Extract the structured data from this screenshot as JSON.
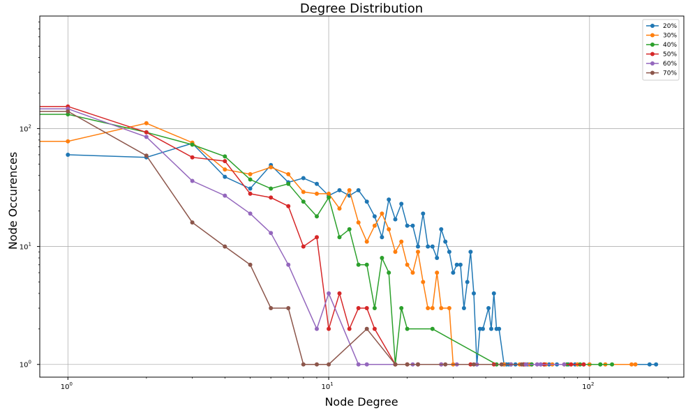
{
  "chart_data": {
    "type": "line",
    "title": "Degree Distribution",
    "xlabel": "Node Degree",
    "ylabel": "Node Occurences",
    "xscale": "log",
    "yscale": "log",
    "xlim": [
      0.78,
      230
    ],
    "ylim": [
      0.78,
      900
    ],
    "grid": true,
    "legend_position": "top-right",
    "x_ticks": [
      {
        "base": "10",
        "exp": "0",
        "value": 1
      },
      {
        "base": "10",
        "exp": "1",
        "value": 10
      },
      {
        "base": "10",
        "exp": "2",
        "value": 100
      }
    ],
    "y_ticks": [
      {
        "base": "10",
        "exp": "0",
        "value": 1
      },
      {
        "base": "10",
        "exp": "1",
        "value": 10
      },
      {
        "base": "10",
        "exp": "2",
        "value": 100
      }
    ],
    "series": [
      {
        "name": "20%",
        "color": "#1f77b4",
        "points": [
          [
            1,
            60
          ],
          [
            2,
            57
          ],
          [
            3,
            75
          ],
          [
            4,
            39
          ],
          [
            5,
            31
          ],
          [
            6,
            49
          ],
          [
            7,
            35
          ],
          [
            8,
            38
          ],
          [
            9,
            34
          ],
          [
            10,
            27
          ],
          [
            11,
            30
          ],
          [
            12,
            27
          ],
          [
            13,
            30
          ],
          [
            14,
            24
          ],
          [
            15,
            18
          ],
          [
            16,
            12
          ],
          [
            17,
            25
          ],
          [
            18,
            17
          ],
          [
            19,
            23
          ],
          [
            20,
            15
          ],
          [
            21,
            15
          ],
          [
            22,
            10
          ],
          [
            23,
            19
          ],
          [
            24,
            10
          ],
          [
            25,
            10
          ],
          [
            26,
            8
          ],
          [
            27,
            14
          ],
          [
            28,
            11
          ],
          [
            29,
            9
          ],
          [
            30,
            6
          ],
          [
            31,
            7
          ],
          [
            32,
            7
          ],
          [
            33,
            3
          ],
          [
            34,
            5
          ],
          [
            35,
            9
          ],
          [
            36,
            4
          ],
          [
            37,
            1
          ],
          [
            38,
            2
          ],
          [
            39,
            2
          ],
          [
            41,
            3
          ],
          [
            42,
            2
          ],
          [
            43,
            4
          ],
          [
            44,
            2
          ],
          [
            45,
            2
          ],
          [
            47,
            1
          ],
          [
            48,
            1
          ],
          [
            49,
            1
          ],
          [
            52,
            1
          ],
          [
            56,
            1
          ],
          [
            58,
            1
          ],
          [
            60,
            1
          ],
          [
            65,
            1
          ],
          [
            70,
            1
          ],
          [
            75,
            1
          ],
          [
            83,
            1
          ],
          [
            88,
            1
          ],
          [
            95,
            1
          ],
          [
            100,
            1
          ],
          [
            110,
            1
          ],
          [
            170,
            1
          ],
          [
            180,
            1
          ]
        ]
      },
      {
        "name": "30%",
        "color": "#ff7f0e",
        "points": [
          [
            0.78,
            78
          ],
          [
            1,
            78
          ],
          [
            2,
            111
          ],
          [
            3,
            76
          ],
          [
            4,
            45
          ],
          [
            5,
            41
          ],
          [
            6,
            47
          ],
          [
            7,
            41
          ],
          [
            8,
            29
          ],
          [
            9,
            28
          ],
          [
            10,
            28
          ],
          [
            11,
            21
          ],
          [
            12,
            30
          ],
          [
            13,
            16
          ],
          [
            14,
            11
          ],
          [
            15,
            15
          ],
          [
            16,
            19
          ],
          [
            17,
            14
          ],
          [
            18,
            9
          ],
          [
            19,
            11
          ],
          [
            20,
            7
          ],
          [
            21,
            6
          ],
          [
            22,
            9
          ],
          [
            23,
            5
          ],
          [
            24,
            3
          ],
          [
            25,
            3
          ],
          [
            26,
            6
          ],
          [
            27,
            3
          ],
          [
            29,
            3
          ],
          [
            30,
            1
          ],
          [
            47,
            1
          ],
          [
            50,
            1
          ],
          [
            54,
            1
          ],
          [
            57,
            1
          ],
          [
            59,
            1
          ],
          [
            63,
            1
          ],
          [
            68,
            1
          ],
          [
            72,
            1
          ],
          [
            80,
            1
          ],
          [
            85,
            1
          ],
          [
            90,
            1
          ],
          [
            100,
            1
          ],
          [
            115,
            1
          ],
          [
            145,
            1
          ],
          [
            150,
            1
          ]
        ]
      },
      {
        "name": "40%",
        "color": "#2ca02c",
        "points": [
          [
            0.78,
            132
          ],
          [
            1,
            132
          ],
          [
            2,
            93
          ],
          [
            3,
            73
          ],
          [
            4,
            58
          ],
          [
            5,
            37
          ],
          [
            6,
            31
          ],
          [
            7,
            34
          ],
          [
            8,
            24
          ],
          [
            9,
            18
          ],
          [
            10,
            26
          ],
          [
            11,
            12
          ],
          [
            12,
            14
          ],
          [
            13,
            7
          ],
          [
            14,
            7
          ],
          [
            15,
            3
          ],
          [
            16,
            8
          ],
          [
            17,
            6
          ],
          [
            18,
            1
          ],
          [
            19,
            3
          ],
          [
            20,
            2
          ],
          [
            25,
            2
          ],
          [
            44,
            1
          ],
          [
            50,
            1
          ],
          [
            56,
            1
          ],
          [
            60,
            1
          ],
          [
            67,
            1
          ],
          [
            82,
            1
          ],
          [
            92,
            1
          ],
          [
            110,
            1
          ],
          [
            122,
            1
          ]
        ]
      },
      {
        "name": "50%",
        "color": "#d62728",
        "points": [
          [
            0.78,
            154
          ],
          [
            1,
            154
          ],
          [
            2,
            93
          ],
          [
            3,
            57
          ],
          [
            4,
            53
          ],
          [
            5,
            28
          ],
          [
            6,
            26
          ],
          [
            7,
            22
          ],
          [
            8,
            10
          ],
          [
            9,
            12
          ],
          [
            10,
            2
          ],
          [
            11,
            4
          ],
          [
            12,
            2
          ],
          [
            13,
            3
          ],
          [
            14,
            3
          ],
          [
            15,
            2
          ],
          [
            18,
            1
          ],
          [
            20,
            1
          ],
          [
            22,
            1
          ],
          [
            27,
            1
          ],
          [
            35,
            1
          ],
          [
            43,
            1
          ],
          [
            56,
            1
          ],
          [
            67,
            1
          ],
          [
            85,
            1
          ],
          [
            95,
            1
          ]
        ]
      },
      {
        "name": "60%",
        "color": "#9467bd",
        "points": [
          [
            0.78,
            147
          ],
          [
            1,
            147
          ],
          [
            2,
            85
          ],
          [
            3,
            36
          ],
          [
            4,
            27
          ],
          [
            5,
            19
          ],
          [
            6,
            13
          ],
          [
            7,
            7
          ],
          [
            9,
            2
          ],
          [
            10,
            4
          ],
          [
            13,
            1
          ],
          [
            14,
            1
          ],
          [
            21,
            1
          ],
          [
            22,
            1
          ],
          [
            27,
            1
          ],
          [
            31,
            1
          ],
          [
            37,
            1
          ],
          [
            50,
            1
          ],
          [
            57,
            1
          ],
          [
            63,
            1
          ],
          [
            65,
            1
          ],
          [
            80,
            1
          ]
        ]
      },
      {
        "name": "70%",
        "color": "#8c564b",
        "points": [
          [
            0.78,
            140
          ],
          [
            1,
            140
          ],
          [
            2,
            59
          ],
          [
            3,
            16
          ],
          [
            4,
            10
          ],
          [
            5,
            7
          ],
          [
            6,
            3
          ],
          [
            7,
            3
          ],
          [
            8,
            1
          ],
          [
            9,
            1
          ],
          [
            10,
            1
          ],
          [
            14,
            2
          ],
          [
            18,
            1
          ],
          [
            20,
            1
          ],
          [
            22,
            1
          ],
          [
            28,
            1
          ],
          [
            36,
            1
          ],
          [
            46,
            1
          ],
          [
            55,
            1
          ]
        ]
      }
    ]
  }
}
